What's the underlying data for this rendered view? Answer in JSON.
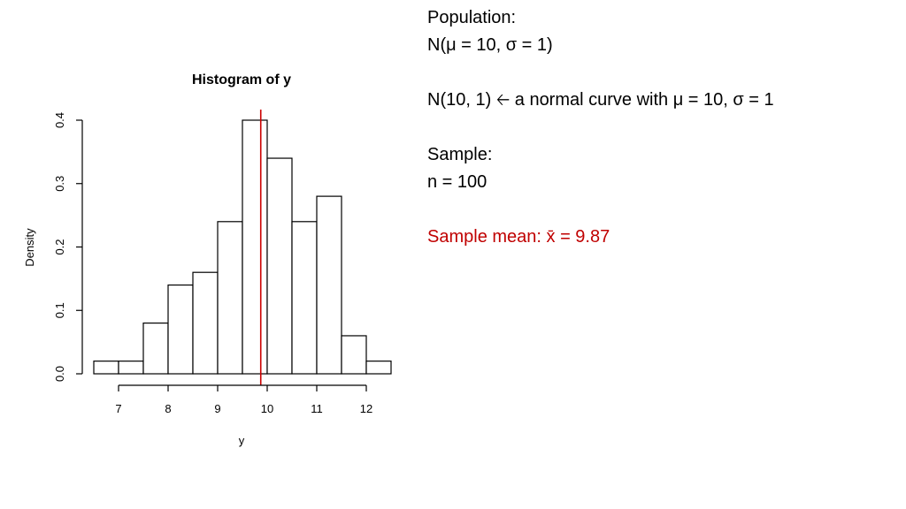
{
  "chart_data": {
    "type": "histogram",
    "title": "Histogram of y",
    "xlabel": "y",
    "ylabel": "Density",
    "bins": [
      {
        "from": 6.5,
        "to": 7.0,
        "density": 0.02
      },
      {
        "from": 7.0,
        "to": 7.5,
        "density": 0.02
      },
      {
        "from": 7.5,
        "to": 8.0,
        "density": 0.08
      },
      {
        "from": 8.0,
        "to": 8.5,
        "density": 0.14
      },
      {
        "from": 8.5,
        "to": 9.0,
        "density": 0.16
      },
      {
        "from": 9.0,
        "to": 9.5,
        "density": 0.24
      },
      {
        "from": 9.5,
        "to": 10.0,
        "density": 0.4
      },
      {
        "from": 10.0,
        "to": 10.5,
        "density": 0.34
      },
      {
        "from": 10.5,
        "to": 11.0,
        "density": 0.24
      },
      {
        "from": 11.0,
        "to": 11.5,
        "density": 0.28
      },
      {
        "from": 11.5,
        "to": 12.0,
        "density": 0.06
      },
      {
        "from": 12.0,
        "to": 12.5,
        "density": 0.02
      }
    ],
    "x_ticks": [
      "7",
      "8",
      "9",
      "10",
      "11",
      "12"
    ],
    "y_ticks": [
      "0.0",
      "0.1",
      "0.2",
      "0.3",
      "0.4"
    ],
    "xlim": [
      6.5,
      12.5
    ],
    "ylim": [
      0,
      0.4
    ],
    "mean_line": {
      "x": 9.87,
      "color": "#cc0000"
    },
    "grid": false,
    "bar_fill": "#ffffff",
    "bar_stroke": "#000000"
  },
  "notes": {
    "population_heading": "Population:",
    "population_dist": "N(μ = 10, σ = 1)",
    "normal_notation": "N(10, 1)",
    "arrow_icon": "left-arrow-icon",
    "normal_desc": " a normal curve with μ = 10, σ = 1",
    "sample_heading": "Sample:",
    "sample_size": "n = 100",
    "sample_mean": "Sample mean: x̄ = 9.87",
    "highlight_color": "#c00000"
  }
}
